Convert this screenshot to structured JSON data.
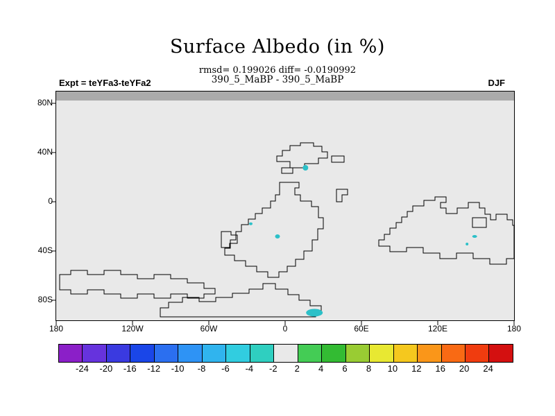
{
  "title": "Surface Albedo (in %)",
  "stats_line": "rmsd= 0.199026 diff= -0.0190992",
  "expt_diff_line": "390_5_MaBP - 390_5_MaBP",
  "header": {
    "left": "Expt = teYFa3-teYFa2",
    "right": "DJF"
  },
  "axes": {
    "lat_labels": [
      "80N",
      "40N",
      "0",
      "40S",
      "80S"
    ],
    "lon_labels": [
      "180",
      "120W",
      "60W",
      "0",
      "60E",
      "120E",
      "180"
    ]
  },
  "colorbar": {
    "labels": [
      "-24",
      "-20",
      "-16",
      "-12",
      "-10",
      "-8",
      "-6",
      "-4",
      "-2",
      "2",
      "4",
      "6",
      "8",
      "10",
      "12",
      "16",
      "20",
      "24"
    ],
    "colors": [
      "#8b1fc8",
      "#6633dd",
      "#3a3ae0",
      "#1a46e8",
      "#2b6ff0",
      "#2e93f5",
      "#30b4ee",
      "#31cde0",
      "#2fcfc0",
      "#e9e9e9",
      "#44cc55",
      "#33bb33",
      "#99cc33",
      "#e8e832",
      "#f5c81e",
      "#fa9619",
      "#f96a14",
      "#f03c0f",
      "#d41010"
    ]
  },
  "map": {
    "background": "#e9e9e9",
    "polar_band_color": "#ababab",
    "coastline_color": "#000000"
  },
  "chart_data": {
    "type": "heatmap",
    "title": "Surface Albedo (in %)",
    "stats": {
      "rmsd": 0.199026,
      "diff": -0.0190992
    },
    "expt_difference": "390_5_MaBP - 390_5_MaBP",
    "experiment_label": "Expt = teYFa3-teYFa2",
    "season": "DJF",
    "lon_range_deg": [
      -180,
      180
    ],
    "lat_range_deg": [
      -90,
      90
    ],
    "x_tick_labels": [
      "180",
      "120W",
      "60W",
      "0",
      "60E",
      "120E",
      "180"
    ],
    "y_tick_labels": [
      "80N",
      "40N",
      "0",
      "40S",
      "80S"
    ],
    "contour_levels_pct": [
      -24,
      -20,
      -16,
      -12,
      -10,
      -8,
      -6,
      -4,
      -2,
      2,
      4,
      6,
      8,
      10,
      12,
      16,
      20,
      24
    ],
    "field_summary": "Albedo difference is within ±2% (gray bin) over almost the entire paleogeographic map; blocky coastlines overlaid; a dark gray polar band spans the top edge; only a few isolated cells fall in the -4 to -2% bin (cyan).",
    "spot_color": "#2cc0c8",
    "anomaly_spots": [
      {
        "lon": 16,
        "lat": 30,
        "bin": "-4 to -2",
        "w": 8,
        "h": 8
      },
      {
        "lon": -27,
        "lat": -14,
        "bin": "-4 to -2",
        "w": 5,
        "h": 4
      },
      {
        "lon": -6,
        "lat": -24,
        "bin": "-4 to -2",
        "w": 7,
        "h": 6
      },
      {
        "lon": 143,
        "lat": -30,
        "bin": "-4 to -2",
        "w": 4,
        "h": 4
      },
      {
        "lon": 149,
        "lat": -24,
        "bin": "-4 to -2",
        "w": 7,
        "h": 4
      },
      {
        "lon": 23,
        "lat": -84,
        "bin": "-4 to -2",
        "w": 24,
        "h": 11
      }
    ]
  }
}
